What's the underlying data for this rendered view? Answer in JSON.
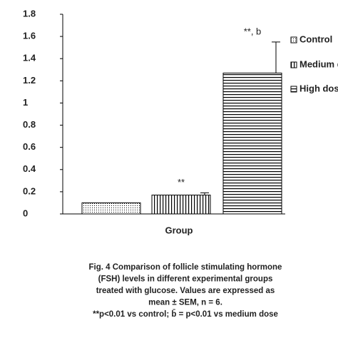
{
  "chart_data": {
    "type": "bar",
    "categories": [
      null
    ],
    "x_label": "Group",
    "series": [
      {
        "name": "Control",
        "color": "#000000",
        "pattern": "dots",
        "values": [
          0.1
        ]
      },
      {
        "name": "Medium dose",
        "color": "#000000",
        "pattern": "vertical",
        "values": [
          0.17
        ],
        "errors": [
          0.02
        ],
        "annotation": "**"
      },
      {
        "name": "High dose",
        "color": "#000000",
        "pattern": "horizontal",
        "values": [
          1.27
        ],
        "errors": [
          0.28
        ],
        "annotation": "**, b"
      }
    ],
    "ylim": [
      0,
      1.8
    ],
    "yticks": [
      0,
      0.2,
      0.4,
      0.6,
      0.8,
      1,
      1.2,
      1.4,
      1.6,
      1.8
    ],
    "grid": false,
    "legend": "right",
    "caption": [
      "Fig. 4 Comparison of follicle stimulating hormone",
      "(FSH) levels in different experimental groups",
      "treated with glucose. Values are expressed as",
      "mean ± SEM, n = 6.",
      "**p<0.01 vs control; b̄ = p<0.01 vs medium dose"
    ]
  }
}
